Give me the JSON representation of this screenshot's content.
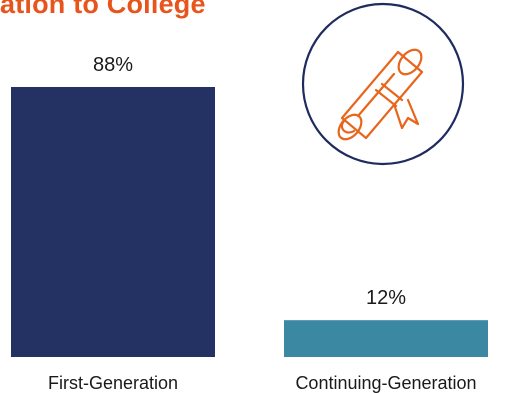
{
  "title": "ation to College",
  "colors": {
    "title": "#e8551c",
    "badge_ring": "#1f2b5e",
    "icon": "#e8651c",
    "background": "#ffffff"
  },
  "icon": "diploma-scroll-icon",
  "chart_data": {
    "type": "bar",
    "categories": [
      "First-Generation",
      "Continuing-Generation"
    ],
    "values": [
      88,
      12
    ],
    "data_labels": [
      "88%",
      "12%"
    ],
    "colors": [
      "#233262",
      "#3b88a3"
    ],
    "ylim": [
      0,
      100
    ],
    "grid": false,
    "title": "ation to College",
    "xlabel": "",
    "ylabel": ""
  }
}
